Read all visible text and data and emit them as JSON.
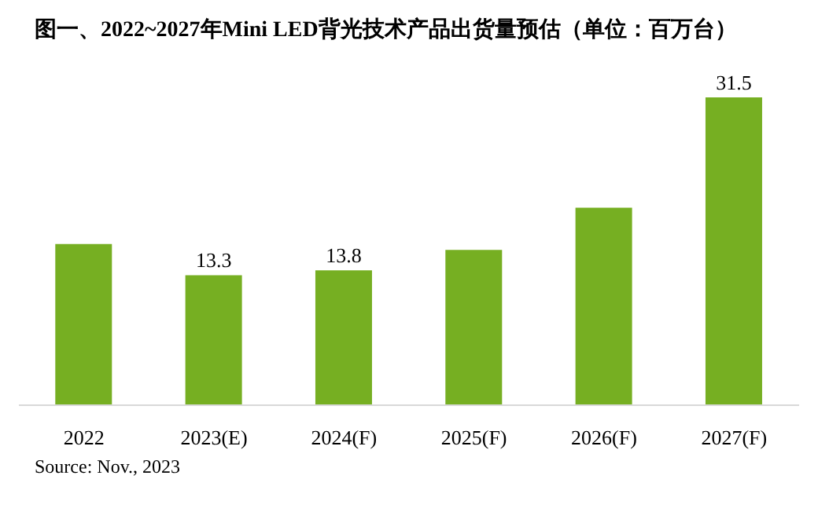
{
  "chart_data": {
    "type": "bar",
    "title": "图一、2022~2027年Mini LED背光技术产品出货量预估（单位：百万台）",
    "categories": [
      "2022",
      "2023(E)",
      "2024(F)",
      "2025(F)",
      "2026(F)",
      "2027(F)"
    ],
    "values": [
      16.5,
      13.3,
      13.8,
      15.9,
      20.2,
      31.5
    ],
    "value_labels": [
      null,
      "13.3",
      "13.8",
      null,
      null,
      "31.5"
    ],
    "color": "#76af22",
    "annotations": [
      "Source: Nov., 2023"
    ]
  }
}
